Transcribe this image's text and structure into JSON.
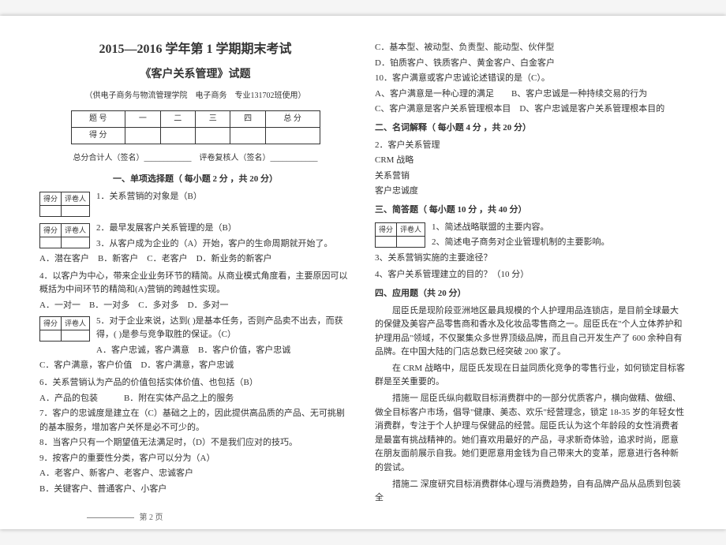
{
  "header": {
    "title_main": "2015—2016 学年第 1 学期期末考试",
    "title_sub": "《客户关系管理》试题",
    "audience": "（供电子商务与物流管理学院　电子商务　专业131702班使用）"
  },
  "score_table": {
    "row1": [
      "题 号",
      "一",
      "二",
      "三",
      "四",
      "总 分"
    ],
    "row2": [
      "得 分",
      "",
      "",
      "",
      "",
      ""
    ]
  },
  "signers": "总分合计人（签名）____________　评卷复核人（签名）____________",
  "section1": {
    "heading": "一、单项选择题（ 每小题 2 分 ，共 20 分）",
    "small_table": {
      "h1": "得分",
      "h2": "评卷人"
    },
    "q1": "1．关系营销的对象是（B）",
    "small_table2": {
      "h1": "得分",
      "h2": "评卷人"
    },
    "q2": "2．最早发展客户关系管理的是（B）",
    "q3": "3．从客户成为企业的（A）开始，客户的生命周期就开始了。",
    "q3opts": "A．潜在客户　B．新客户　C．老客户　D．新业务的新客户",
    "q4": "4．以客户为中心，带来企业业务环节的精简。从商业模式角度看，主要原因可以概括为中间环节的精简和(A)营销的跨越性实现。",
    "q4opts": "A．一对一　B．一对多　C．多对多　D．多对一",
    "small_table3": {
      "h1": "得分",
      "h2": "评卷人"
    },
    "q5": "5．对于企业来说，达到( )是基本任务，否则产品卖不出去，而获得，( )是参与竞争取胜的保证。（C）",
    "q5opts": "A．客户忠诚，客户满意　B．客户价值，客户忠诚",
    "q5opts2": "C．客户满意，客户价值　D．客户满意，客户忠诚",
    "q6": "6．关系营销认为产品的价值包括实体价值、也包括（B）",
    "q6opts": "A．产品的包装　　　B．附在实体产品之上的服务",
    "q7": "7．客户的忠诚度是建立在（C）基础之上的，因此提供高品质的产品、无可挑剔的基本服务，增加客户关怀是必不可少的。",
    "q8": "8．当客户只有一个期望值无法满足时，（D）不是我们应对的技巧。",
    "q9": "9．按客户的重要性分类，客户可以分为（A）",
    "q9a": "A．老客户、新客户、老客户、忠诚客户",
    "q9b": "B．关键客户、普通客户、小客户"
  },
  "col2": {
    "q9c": "C．基本型、被动型、负责型、能动型、伙伴型",
    "q9d": "D．铂质客户、铁质客户、黄金客户、白金客户",
    "q10": "10．客户满意或客户忠诚论述错误的是（C）。",
    "q10a": "A、客户满意是一种心理的满足　　B、客户忠诚是一种持续交易的行为",
    "q10b": "C、客户满意是客户关系管理根本目　D、客户忠诚是客户关系管理根本目的",
    "sec2_heading": "二、名词解释（ 每小题 4 分 ，共 20 分）",
    "t1": "2．客户关系管理",
    "t2": "CRM 战略",
    "t3": "关系营销",
    "t4": "客户忠诚度",
    "sec3_heading": "三、简答题（ 每小题 10 分 ，共 40 分）",
    "small_table": {
      "h1": "得分",
      "h2": "评卷人"
    },
    "s1": "1、简述战略联盟的主要内容。",
    "s2": "2、简述电子商务对企业管理机制的主要影响。",
    "s3": "3、关系营销实施的主要途径？",
    "s4": "4、客户关系管理建立的目的？（10 分）",
    "sec4_heading": "四、应用题（共 20 分）",
    "p1": "屈臣氏是现阶段亚洲地区最具规模的个人护理用品连锁店，是目前全球最大的保健及美容产品零售商和香水及化妆品零售商之一。屈臣氏在\"个人立体养护和护理用品\"领域，不仅聚集众多世界顶级品牌，而且自己开发生产了 600 余种自有品牌。在中国大陆的门店总数已经突破 200 家了。",
    "p2": "在 CRM 战略中，屈臣氏发现在日益同质化竞争的零售行业，如何锁定目标客群是至关重要的。",
    "p3": "措施一 屈臣氏纵向截取目标消费群中的一部分优质客户，横向做精、做细、做全目标客户市场，倡导\"健康、美态、欢乐\"经营理念，锁定 18-35 岁的年轻女性消费群，专注于个人护理与保健品的经营。屈臣氏认为这个年龄段的女性消费者是最富有挑战精神的。她们喜欢用最好的产品，寻求新奇体验，追求时尚，愿意在朋友面前展示自我。她们更愿意用金钱为自己带来大的变革，愿意进行各种新的尝试。",
    "p4": "措施二 深度研究目标消费群体心理与消费趋势，自有品牌产品从品质到包装全"
  },
  "footer": "第 2 页"
}
